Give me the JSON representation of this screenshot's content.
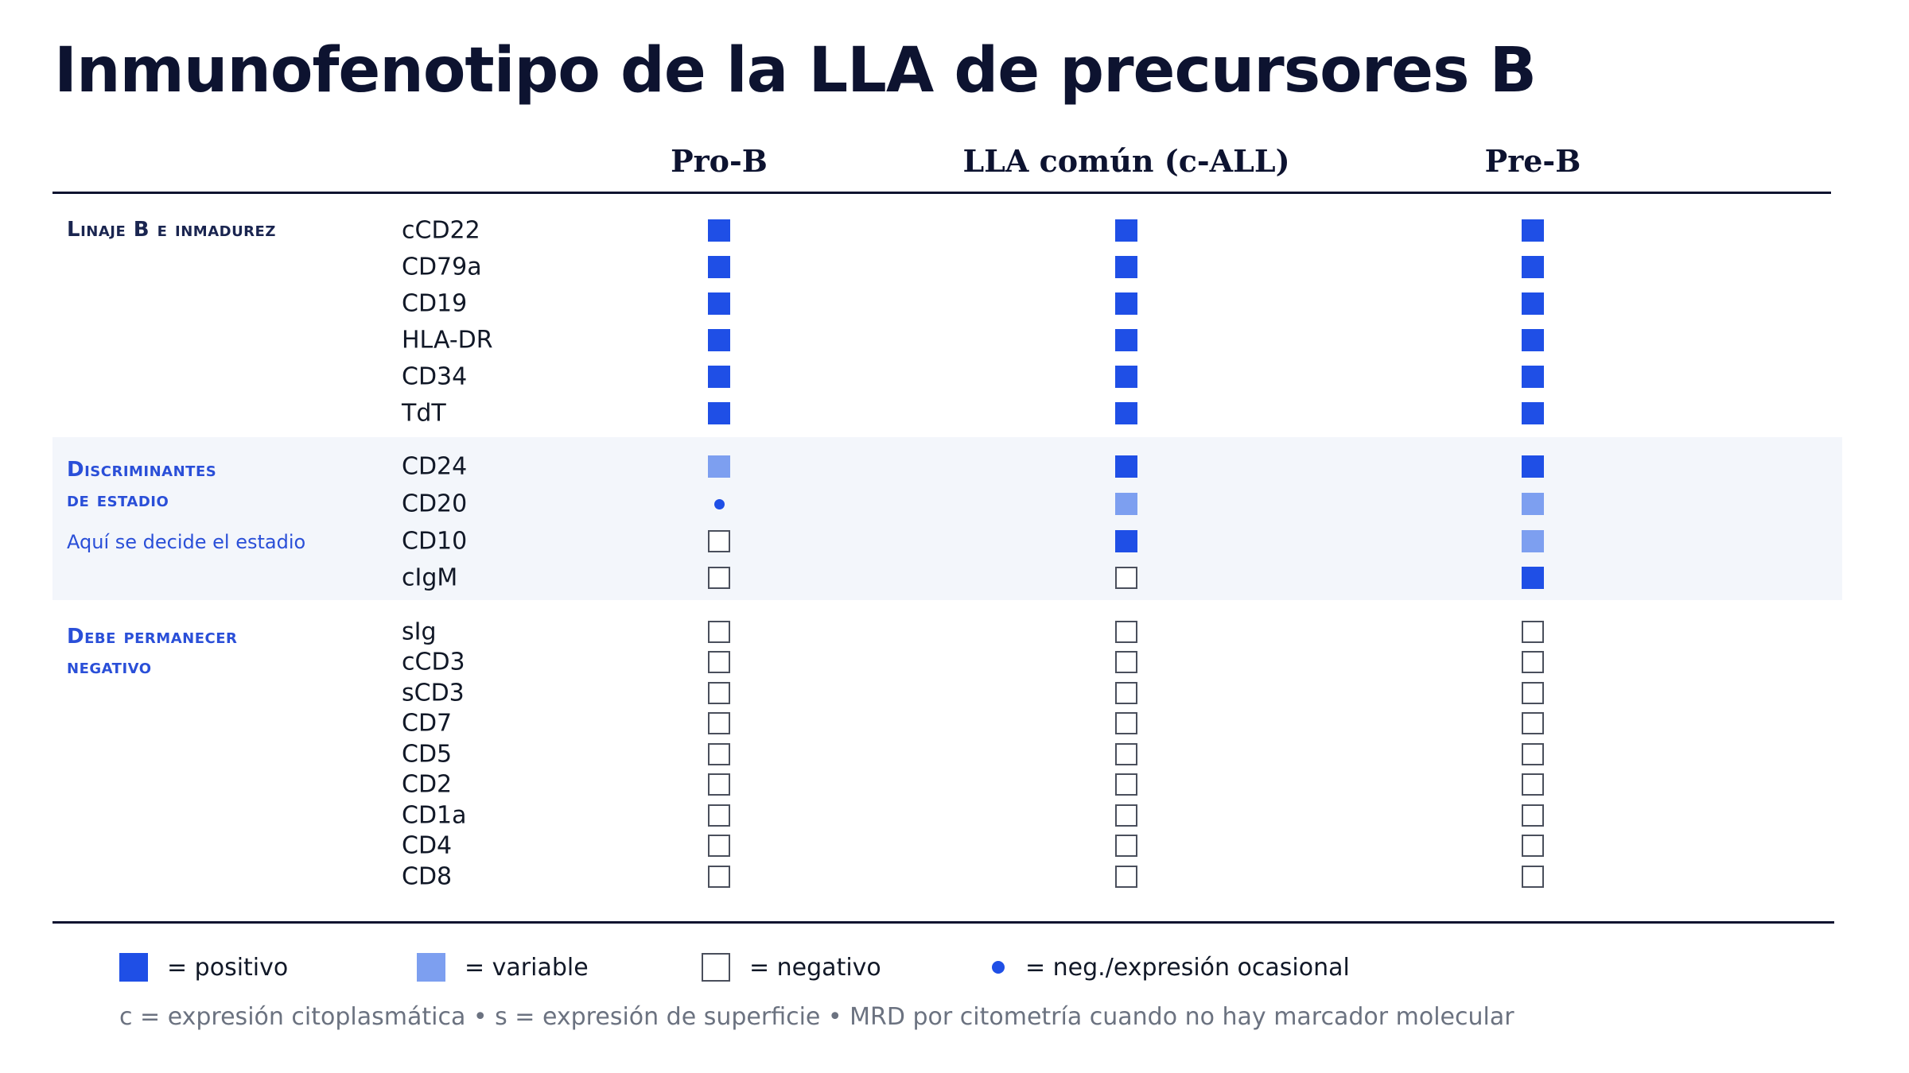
{
  "title": "Inmunofenotipo de la LLA de precursores B",
  "columns": [
    "Pro-B",
    "LLA común (c-ALL)",
    "Pre-B"
  ],
  "colors": {
    "positive": "#1f4fe6",
    "variable": "#7d9ff0",
    "negative_border": "#4a4f5c",
    "group_dark": "#0d1330",
    "group_blue": "#2a4fd8",
    "band": "#f3f6fb"
  },
  "groups": [
    {
      "label_lines": [
        "Linaje B e inmadurez"
      ],
      "color": "#1a2550",
      "sub": "",
      "rows": [
        {
          "marker": "cCD22",
          "values": [
            "pos",
            "pos",
            "pos"
          ]
        },
        {
          "marker": "CD79a",
          "values": [
            "pos",
            "pos",
            "pos"
          ]
        },
        {
          "marker": "CD19",
          "values": [
            "pos",
            "pos",
            "pos"
          ]
        },
        {
          "marker": "HLA-DR",
          "values": [
            "pos",
            "pos",
            "pos"
          ]
        },
        {
          "marker": "CD34",
          "values": [
            "pos",
            "pos",
            "pos"
          ]
        },
        {
          "marker": "TdT",
          "values": [
            "pos",
            "pos",
            "pos"
          ]
        }
      ]
    },
    {
      "label_lines": [
        "Discriminantes",
        "de estadio"
      ],
      "color": "#2a4fd8",
      "sub": "Aquí se decide el estadio",
      "rows": [
        {
          "marker": "CD24",
          "values": [
            "var",
            "pos",
            "pos"
          ]
        },
        {
          "marker": "CD20",
          "values": [
            "occ",
            "var",
            "var"
          ]
        },
        {
          "marker": "CD10",
          "values": [
            "neg",
            "pos",
            "var"
          ]
        },
        {
          "marker": "cIgM",
          "values": [
            "neg",
            "neg",
            "pos"
          ]
        }
      ]
    },
    {
      "label_lines": [
        "Debe permanecer",
        "negativo"
      ],
      "color": "#2a4fd8",
      "sub": "",
      "rows": [
        {
          "marker": "sIg",
          "values": [
            "neg",
            "neg",
            "neg"
          ]
        },
        {
          "marker": "cCD3",
          "values": [
            "neg",
            "neg",
            "neg"
          ]
        },
        {
          "marker": "sCD3",
          "values": [
            "neg",
            "neg",
            "neg"
          ]
        },
        {
          "marker": "CD7",
          "values": [
            "neg",
            "neg",
            "neg"
          ]
        },
        {
          "marker": "CD5",
          "values": [
            "neg",
            "neg",
            "neg"
          ]
        },
        {
          "marker": "CD2",
          "values": [
            "neg",
            "neg",
            "neg"
          ]
        },
        {
          "marker": "CD1a",
          "values": [
            "neg",
            "neg",
            "neg"
          ]
        },
        {
          "marker": "CD4",
          "values": [
            "neg",
            "neg",
            "neg"
          ]
        },
        {
          "marker": "CD8",
          "values": [
            "neg",
            "neg",
            "neg"
          ]
        }
      ]
    }
  ],
  "legend": [
    {
      "kind": "pos",
      "text": "=  positivo"
    },
    {
      "kind": "var",
      "text": "=  variable"
    },
    {
      "kind": "neg",
      "text": "= negativo"
    },
    {
      "kind": "occ",
      "text": "=  neg./expresión ocasional"
    }
  ],
  "footnote": "c = expresión citoplasmática • s = expresión de superficie • MRD por citometría cuando no hay marcador molecular"
}
